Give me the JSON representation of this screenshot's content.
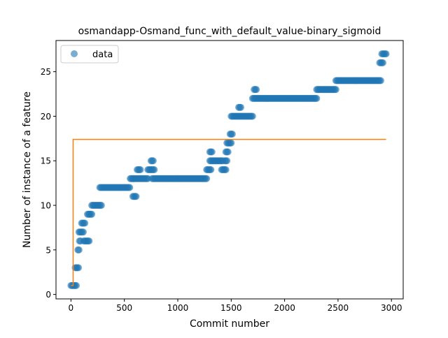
{
  "chart_data": {
    "type": "scatter",
    "title": "osmandapp-Osmand_func_with_default_value-binary_sigmoid",
    "xlabel": "Commit number",
    "ylabel": "Number of instance of a feature",
    "xlim": [
      -140,
      3110
    ],
    "ylim": [
      -0.5,
      28.5
    ],
    "xticks": [
      0,
      500,
      1000,
      1500,
      2000,
      2500,
      3000
    ],
    "yticks": [
      0,
      5,
      10,
      15,
      20,
      25
    ],
    "legend": {
      "placement": "top-left",
      "entries": [
        "data"
      ]
    },
    "colors": {
      "data": "#1f77b4",
      "fit": "#ff7f0e"
    },
    "series": [
      {
        "name": "data",
        "kind": "scatter",
        "segments": [
          {
            "x_start": 0,
            "x_end": 55,
            "y": 1
          },
          {
            "x_start": 40,
            "x_end": 75,
            "y": 3
          },
          {
            "x_start": 65,
            "x_end": 80,
            "y": 5
          },
          {
            "x_start": 80,
            "x_end": 95,
            "y": 6
          },
          {
            "x_start": 75,
            "x_end": 120,
            "y": 7
          },
          {
            "x_start": 100,
            "x_end": 135,
            "y": 8
          },
          {
            "x_start": 120,
            "x_end": 170,
            "y": 6
          },
          {
            "x_start": 155,
            "x_end": 200,
            "y": 9
          },
          {
            "x_start": 195,
            "x_end": 290,
            "y": 10
          },
          {
            "x_start": 270,
            "x_end": 555,
            "y": 12
          },
          {
            "x_start": 555,
            "x_end": 590,
            "y": 13
          },
          {
            "x_start": 580,
            "x_end": 610,
            "y": 11
          },
          {
            "x_start": 590,
            "x_end": 720,
            "y": 13
          },
          {
            "x_start": 620,
            "x_end": 650,
            "y": 14
          },
          {
            "x_start": 720,
            "x_end": 780,
            "y": 14
          },
          {
            "x_start": 750,
            "x_end": 775,
            "y": 15
          },
          {
            "x_start": 760,
            "x_end": 1270,
            "y": 13
          },
          {
            "x_start": 1270,
            "x_end": 1310,
            "y": 14
          },
          {
            "x_start": 1300,
            "x_end": 1320,
            "y": 16
          },
          {
            "x_start": 1300,
            "x_end": 1420,
            "y": 15
          },
          {
            "x_start": 1410,
            "x_end": 1450,
            "y": 14
          },
          {
            "x_start": 1440,
            "x_end": 1460,
            "y": 15
          },
          {
            "x_start": 1450,
            "x_end": 1470,
            "y": 16
          },
          {
            "x_start": 1460,
            "x_end": 1500,
            "y": 17
          },
          {
            "x_start": 1490,
            "x_end": 1510,
            "y": 18
          },
          {
            "x_start": 1500,
            "x_end": 1700,
            "y": 20
          },
          {
            "x_start": 1570,
            "x_end": 1590,
            "y": 21
          },
          {
            "x_start": 1700,
            "x_end": 2300,
            "y": 22
          },
          {
            "x_start": 1715,
            "x_end": 1740,
            "y": 23
          },
          {
            "x_start": 2300,
            "x_end": 2480,
            "y": 23
          },
          {
            "x_start": 2480,
            "x_end": 2900,
            "y": 24
          },
          {
            "x_start": 2890,
            "x_end": 2920,
            "y": 26
          },
          {
            "x_start": 2910,
            "x_end": 2950,
            "y": 27
          }
        ]
      },
      {
        "kind": "line",
        "x": [
          0,
          20,
          20,
          2950
        ],
        "y": [
          1,
          1,
          17.4,
          17.4
        ]
      }
    ]
  }
}
